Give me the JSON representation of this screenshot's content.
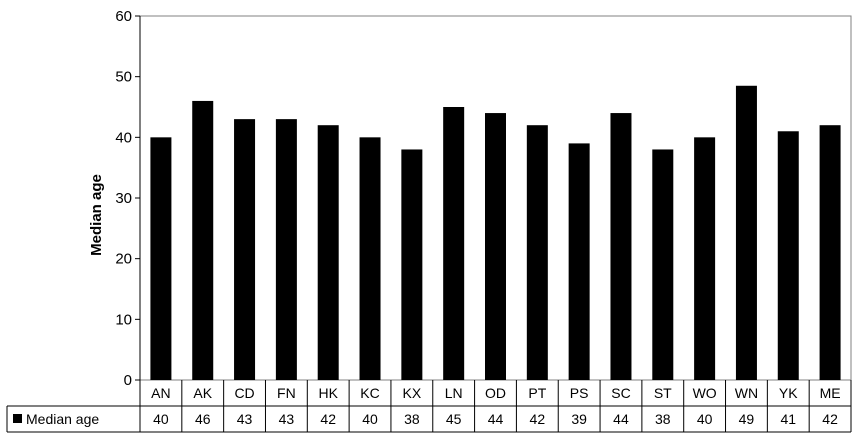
{
  "chart_data": {
    "type": "bar",
    "categories": [
      "AN",
      "AK",
      "CD",
      "FN",
      "HK",
      "KC",
      "KX",
      "LN",
      "OD",
      "PT",
      "PS",
      "SC",
      "ST",
      "WO",
      "WN",
      "YK",
      "ME"
    ],
    "series": [
      {
        "name": "Median age",
        "values": [
          40,
          46,
          43,
          43,
          42,
          40,
          38,
          45,
          44,
          42,
          39,
          44,
          38,
          40,
          48.5,
          41,
          42
        ],
        "table_labels": [
          "40",
          "46",
          "43",
          "43",
          "42",
          "40",
          "38",
          "45",
          "44",
          "42",
          "39",
          "44",
          "38",
          "40",
          "49",
          "41",
          "42"
        ],
        "color": "#000000"
      }
    ],
    "title": "",
    "xlabel": "",
    "ylabel": "Median age",
    "ylim": [
      0,
      60
    ],
    "yticks": [
      0,
      10,
      20,
      30,
      40,
      50,
      60
    ],
    "grid": false,
    "legend": "data-table"
  }
}
